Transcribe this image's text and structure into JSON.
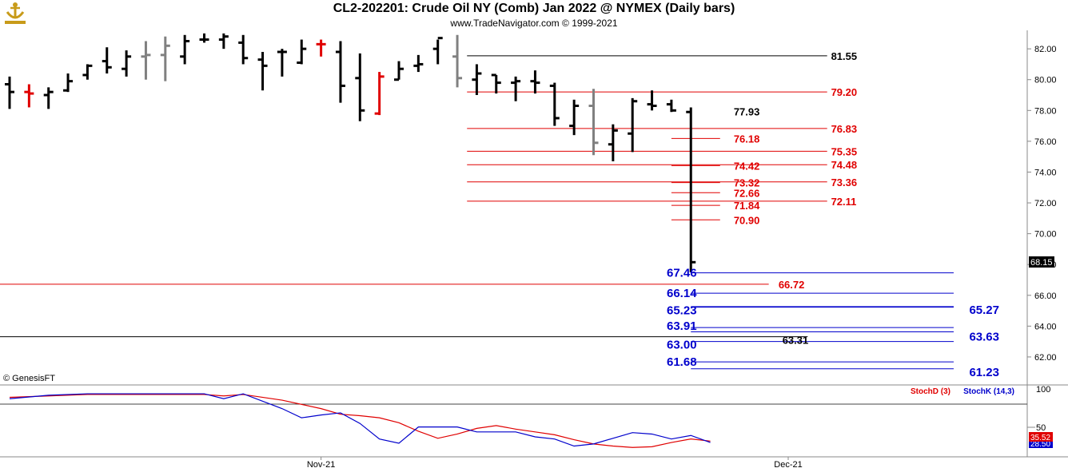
{
  "header": {
    "title": "CL2-202201:  Crude Oil NY (Comb) Jan 2022 @ NYMEX  (Daily bars)",
    "subtitle": "www.TradeNavigator.com © 1999-2021",
    "copyright": "© GenesisFT"
  },
  "chart_data": [
    {
      "type": "ohlc",
      "y_ticks": [
        "82.00",
        "80.00",
        "78.00",
        "76.00",
        "74.00",
        "72.00",
        "70.00",
        "68.00",
        "66.00",
        "64.00",
        "62.00"
      ],
      "ylim": [
        60.7,
        83.2
      ],
      "x_labels": [
        {
          "day": 16,
          "label": "Nov-21"
        },
        {
          "day": 40,
          "label": "Dec-21"
        }
      ],
      "current_price": "68.15",
      "bars": [
        {
          "o": 79.7,
          "h": 80.2,
          "l": 78.1,
          "c": 79.2,
          "color": "#000000"
        },
        {
          "o": 79.2,
          "h": 79.7,
          "l": 78.2,
          "c": 79.1,
          "color": "#e00000"
        },
        {
          "o": 79.0,
          "h": 79.5,
          "l": 78.1,
          "c": 79.2,
          "color": "#000000"
        },
        {
          "o": 79.3,
          "h": 80.4,
          "l": 79.2,
          "c": 79.9,
          "color": "#000000"
        },
        {
          "o": 80.3,
          "h": 81.0,
          "l": 80.0,
          "c": 80.9,
          "color": "#000000"
        },
        {
          "o": 81.2,
          "h": 82.1,
          "l": 80.4,
          "c": 80.8,
          "color": "#000000"
        },
        {
          "o": 80.7,
          "h": 81.9,
          "l": 80.2,
          "c": 81.5,
          "color": "#000000"
        },
        {
          "o": 81.5,
          "h": 82.5,
          "l": 80.0,
          "c": 81.6,
          "color": "#808080"
        },
        {
          "o": 81.6,
          "h": 82.8,
          "l": 79.9,
          "c": 82.2,
          "color": "#808080"
        },
        {
          "o": 81.5,
          "h": 82.9,
          "l": 81.0,
          "c": 82.5,
          "color": "#000000"
        },
        {
          "o": 82.6,
          "h": 83.0,
          "l": 82.4,
          "c": 82.6,
          "color": "#000000"
        },
        {
          "o": 82.6,
          "h": 83.0,
          "l": 82.0,
          "c": 82.8,
          "color": "#000000"
        },
        {
          "o": 82.4,
          "h": 82.9,
          "l": 81.0,
          "c": 81.4,
          "color": "#000000"
        },
        {
          "o": 81.3,
          "h": 81.8,
          "l": 79.3,
          "c": 80.9,
          "color": "#000000"
        },
        {
          "o": 81.8,
          "h": 82.0,
          "l": 80.2,
          "c": 81.8,
          "color": "#000000"
        },
        {
          "o": 81.1,
          "h": 82.6,
          "l": 81.0,
          "c": 82.0,
          "color": "#000000"
        },
        {
          "o": 82.3,
          "h": 82.6,
          "l": 81.5,
          "c": 82.3,
          "color": "#e00000"
        },
        {
          "o": 81.8,
          "h": 82.5,
          "l": 78.5,
          "c": 79.6,
          "color": "#000000"
        },
        {
          "o": 80.1,
          "h": 81.7,
          "l": 77.3,
          "c": 78.0,
          "color": "#000000"
        },
        {
          "o": 77.8,
          "h": 80.5,
          "l": 77.7,
          "c": 80.2,
          "color": "#e00000"
        },
        {
          "o": 80.0,
          "h": 81.2,
          "l": 80.0,
          "c": 80.7,
          "color": "#000000"
        },
        {
          "o": 80.9,
          "h": 81.6,
          "l": 80.5,
          "c": 81.0,
          "color": "#000000"
        },
        {
          "o": 82.0,
          "h": 82.6,
          "l": 81.0,
          "c": 82.7,
          "color": "#000000"
        },
        {
          "o": 81.5,
          "h": 82.9,
          "l": 79.5,
          "c": 80.1,
          "color": "#808080"
        },
        {
          "o": 80.0,
          "h": 81.0,
          "l": 79.0,
          "c": 80.4,
          "color": "#000000"
        },
        {
          "o": 80.3,
          "h": 80.3,
          "l": 79.1,
          "c": 79.8,
          "color": "#000000"
        },
        {
          "o": 79.8,
          "h": 80.2,
          "l": 78.6,
          "c": 79.9,
          "color": "#000000"
        },
        {
          "o": 79.9,
          "h": 80.6,
          "l": 79.1,
          "c": 79.8,
          "color": "#000000"
        },
        {
          "o": 79.6,
          "h": 79.8,
          "l": 77.0,
          "c": 77.5,
          "color": "#000000"
        },
        {
          "o": 77.0,
          "h": 78.7,
          "l": 76.4,
          "c": 78.3,
          "color": "#000000"
        },
        {
          "o": 78.3,
          "h": 79.4,
          "l": 75.1,
          "c": 75.9,
          "color": "#808080"
        },
        {
          "o": 75.8,
          "h": 77.1,
          "l": 74.7,
          "c": 76.7,
          "color": "#000000"
        },
        {
          "o": 76.5,
          "h": 78.8,
          "l": 75.3,
          "c": 78.6,
          "color": "#000000"
        },
        {
          "o": 78.4,
          "h": 79.3,
          "l": 78.0,
          "c": 78.3,
          "color": "#000000"
        },
        {
          "o": 78.4,
          "h": 78.7,
          "l": 77.9,
          "c": 78.0,
          "color": "#000000"
        },
        {
          "o": 77.9,
          "h": 78.2,
          "l": 67.5,
          "c": 68.15,
          "color": "#000000"
        }
      ],
      "levels": [
        {
          "label": "81.55",
          "value": 81.55,
          "color": "#000000",
          "x0": 23.5,
          "x1": 42
        },
        {
          "label": "79.20",
          "value": 79.2,
          "color": "#e00000",
          "x0": 23.5,
          "x1": 42
        },
        {
          "label": "77.93",
          "value": 77.93,
          "color": "#000000",
          "x0": 36,
          "x1": 36
        },
        {
          "label": "76.83",
          "value": 76.83,
          "color": "#e00000",
          "x0": 23.5,
          "x1": 42
        },
        {
          "label": "76.18",
          "value": 76.18,
          "color": "#e00000",
          "x0": 34,
          "x1": 36.5
        },
        {
          "label": "75.35",
          "value": 75.35,
          "color": "#e00000",
          "x0": 23.5,
          "x1": 42
        },
        {
          "label": "74.48",
          "value": 74.48,
          "color": "#e00000",
          "x0": 23.5,
          "x1": 42
        },
        {
          "label": "74.42",
          "value": 74.42,
          "color": "#e00000",
          "x0": 34,
          "x1": 36.5
        },
        {
          "label": "73.36",
          "value": 73.36,
          "color": "#e00000",
          "x0": 23.5,
          "x1": 42
        },
        {
          "label": "73.32",
          "value": 73.32,
          "color": "#e00000",
          "x0": 34,
          "x1": 36.5
        },
        {
          "label": "72.66",
          "value": 72.66,
          "color": "#e00000",
          "x0": 34,
          "x1": 36.5
        },
        {
          "label": "72.11",
          "value": 72.11,
          "color": "#e00000",
          "x0": 23.5,
          "x1": 42
        },
        {
          "label": "71.84",
          "value": 71.84,
          "color": "#e00000",
          "x0": 34,
          "x1": 36.5
        },
        {
          "label": "70.90",
          "value": 70.9,
          "color": "#e00000",
          "x0": 34,
          "x1": 36.5
        },
        {
          "label": "67.46",
          "value": 67.46,
          "color": "#0000cc",
          "x0": 35,
          "x1": 48.5
        },
        {
          "label": "66.72",
          "value": 66.72,
          "color": "#e00000",
          "x0": -1,
          "x1": 39
        },
        {
          "label": "66.14",
          "value": 66.14,
          "color": "#0000cc",
          "x0": 35,
          "x1": 48.5
        },
        {
          "label": "65.23",
          "value": 65.23,
          "color": "#0000cc",
          "x0": 35,
          "x1": 48.5
        },
        {
          "label": "65.27",
          "value": 65.27,
          "color": "#0000cc",
          "x0": 35,
          "x1": 48.5
        },
        {
          "label": "63.91",
          "value": 63.91,
          "color": "#0000cc",
          "x0": 35,
          "x1": 48.5
        },
        {
          "label": "63.63",
          "value": 63.63,
          "color": "#0000cc",
          "x0": 35,
          "x1": 48.5
        },
        {
          "label": "63.31",
          "value": 63.31,
          "color": "#000000",
          "x0": -1,
          "x1": 41
        },
        {
          "label": "63.00",
          "value": 63.0,
          "color": "#0000cc",
          "x0": 35,
          "x1": 48.5
        },
        {
          "label": "61.68",
          "value": 61.68,
          "color": "#0000cc",
          "x0": 35,
          "x1": 48.5
        },
        {
          "label": "61.23",
          "value": 61.23,
          "color": "#0000cc",
          "x0": 35,
          "x1": 48.5
        }
      ]
    },
    {
      "type": "line",
      "y_ticks": [
        "100",
        "50"
      ],
      "ylim": [
        10,
        105
      ],
      "legend": [
        "StochD (3)",
        "StochK (14,3)"
      ],
      "values_label_top": "35.52",
      "values_label_bottom": "28.50",
      "series": [
        {
          "name": "StochD (3)",
          "color": "#e00000",
          "points": [
            [
              0,
              92
            ],
            [
              2,
              94
            ],
            [
              4,
              96
            ],
            [
              6,
              96
            ],
            [
              8,
              96
            ],
            [
              10,
              96
            ],
            [
              11,
              94
            ],
            [
              12,
              96
            ],
            [
              14,
              88
            ],
            [
              16,
              76
            ],
            [
              17,
              68
            ],
            [
              18,
              66
            ],
            [
              19,
              63
            ],
            [
              20,
              56
            ],
            [
              21,
              44
            ],
            [
              22,
              34
            ],
            [
              23,
              40
            ],
            [
              24,
              48
            ],
            [
              25,
              52
            ],
            [
              26,
              47
            ],
            [
              27,
              43
            ],
            [
              28,
              39
            ],
            [
              29,
              32
            ],
            [
              30,
              26
            ],
            [
              31,
              23
            ],
            [
              32,
              21
            ],
            [
              33,
              22
            ],
            [
              34,
              28
            ],
            [
              35,
              33
            ],
            [
              36,
              30
            ]
          ]
        },
        {
          "name": "StochK (14,3)",
          "color": "#0000cc",
          "points": [
            [
              0,
              90
            ],
            [
              2,
              95
            ],
            [
              4,
              97
            ],
            [
              6,
              97
            ],
            [
              8,
              97
            ],
            [
              10,
              97
            ],
            [
              11,
              90
            ],
            [
              12,
              97
            ],
            [
              14,
              76
            ],
            [
              15,
              63
            ],
            [
              16,
              67
            ],
            [
              17,
              70
            ],
            [
              18,
              55
            ],
            [
              19,
              33
            ],
            [
              20,
              27
            ],
            [
              21,
              50
            ],
            [
              22,
              50
            ],
            [
              23,
              50
            ],
            [
              24,
              43
            ],
            [
              25,
              43
            ],
            [
              26,
              43
            ],
            [
              27,
              36
            ],
            [
              28,
              33
            ],
            [
              29,
              23
            ],
            [
              30,
              26
            ],
            [
              31,
              34
            ],
            [
              32,
              42
            ],
            [
              33,
              40
            ],
            [
              34,
              33
            ],
            [
              35,
              38
            ],
            [
              36,
              28
            ]
          ]
        }
      ]
    }
  ]
}
